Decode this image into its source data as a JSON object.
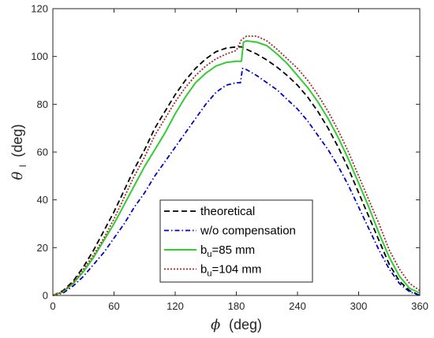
{
  "chart_data": {
    "type": "line",
    "title": "",
    "xlabel": {
      "symbol": "ϕ",
      "unit": "(deg)"
    },
    "ylabel": {
      "symbol": "θ",
      "subscript": "l",
      "unit": "(deg)"
    },
    "xlim": [
      0,
      360
    ],
    "ylim": [
      0,
      120
    ],
    "xticks": [
      0,
      60,
      120,
      180,
      240,
      300,
      360
    ],
    "yticks": [
      0,
      20,
      40,
      60,
      80,
      100,
      120
    ],
    "grid": false,
    "legend": "lower-center",
    "series": [
      {
        "name": "theoretical",
        "legend_parts": [
          "theoretical"
        ],
        "color": "#000000",
        "style": "dashed",
        "x": [
          0,
          10,
          20,
          30,
          40,
          50,
          60,
          70,
          80,
          90,
          100,
          110,
          120,
          130,
          140,
          150,
          160,
          170,
          180,
          185,
          190,
          200,
          210,
          220,
          230,
          240,
          250,
          260,
          270,
          280,
          290,
          300,
          310,
          320,
          330,
          340,
          350,
          360
        ],
        "y": [
          0,
          2,
          6,
          12,
          19,
          27,
          35,
          44,
          53,
          61,
          70,
          77,
          84,
          90,
          95,
          99,
          102,
          103.5,
          104,
          104,
          103,
          101,
          98.5,
          95.5,
          92,
          88,
          83,
          77,
          70,
          62,
          53,
          43,
          33,
          23,
          13,
          6,
          2,
          0
        ]
      },
      {
        "name": "w/o compensation",
        "legend_parts": [
          "w/o compensation"
        ],
        "color": "#0000cc",
        "style": "dashdot",
        "x": [
          0,
          10,
          20,
          30,
          40,
          50,
          60,
          70,
          80,
          90,
          100,
          110,
          120,
          130,
          140,
          150,
          160,
          170,
          180,
          184,
          186,
          190,
          200,
          210,
          220,
          230,
          240,
          250,
          260,
          270,
          280,
          290,
          300,
          310,
          320,
          330,
          340,
          350,
          360
        ],
        "y": [
          0,
          1,
          4,
          8,
          13,
          18,
          24,
          30,
          37,
          43,
          50,
          56,
          62,
          68,
          74,
          80,
          85,
          88,
          89,
          89,
          95,
          94.5,
          92,
          89,
          86,
          82,
          78,
          73,
          67,
          61,
          54,
          46,
          37,
          28,
          19,
          11,
          5,
          1.5,
          0
        ]
      },
      {
        "name": "bu=85 mm",
        "legend_parts": [
          "b",
          "u",
          "=85 mm"
        ],
        "color": "#33cc33",
        "style": "solid",
        "x": [
          0,
          10,
          20,
          30,
          40,
          50,
          60,
          70,
          80,
          90,
          100,
          110,
          120,
          130,
          140,
          150,
          160,
          170,
          180,
          185,
          187,
          190,
          200,
          210,
          220,
          230,
          240,
          250,
          260,
          270,
          280,
          290,
          300,
          310,
          320,
          330,
          340,
          350,
          360
        ],
        "y": [
          0,
          1.5,
          5,
          10,
          16,
          23,
          30,
          38,
          46,
          54,
          61,
          68,
          76,
          83,
          89,
          93,
          96,
          97.5,
          98,
          98,
          106,
          106.5,
          106,
          104.5,
          101,
          97,
          92,
          87,
          81,
          74,
          66,
          57,
          47,
          37,
          26,
          16,
          8,
          3,
          1
        ]
      },
      {
        "name": "bu=104 mm",
        "legend_parts": [
          "b",
          "u",
          "=104 mm"
        ],
        "color": "#a52a2a",
        "style": "dotted",
        "x": [
          0,
          10,
          20,
          30,
          40,
          50,
          60,
          70,
          80,
          90,
          100,
          110,
          120,
          130,
          140,
          150,
          160,
          170,
          180,
          185,
          190,
          200,
          210,
          220,
          230,
          240,
          250,
          260,
          270,
          280,
          290,
          300,
          310,
          320,
          330,
          340,
          350,
          360
        ],
        "y": [
          0,
          1.5,
          5.5,
          11,
          17,
          24,
          32,
          41,
          50,
          58,
          67,
          74,
          81,
          87,
          92,
          96,
          99,
          101,
          102.5,
          107,
          108.5,
          108.5,
          106.5,
          103,
          99,
          95,
          90,
          84,
          77,
          69,
          60,
          50,
          40,
          30,
          19,
          11,
          5,
          2
        ]
      }
    ]
  }
}
